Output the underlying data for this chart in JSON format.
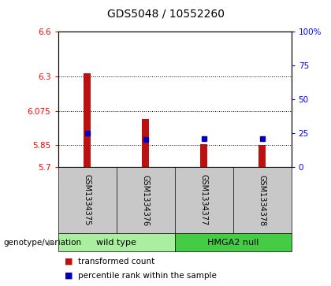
{
  "title": "GDS5048 / 10552260",
  "samples": [
    "GSM1334375",
    "GSM1334376",
    "GSM1334377",
    "GSM1334378"
  ],
  "bar_values": [
    6.325,
    6.02,
    5.855,
    5.848
  ],
  "bar_base": 5.7,
  "percentile_values": [
    5.928,
    5.882,
    5.888,
    5.888
  ],
  "ylim": [
    5.7,
    6.6
  ],
  "yticks_left": [
    5.7,
    5.85,
    6.075,
    6.3,
    6.6
  ],
  "ytick_labels_left": [
    "5.7",
    "5.85",
    "6.075",
    "6.3",
    "6.6"
  ],
  "right_yticks": [
    0,
    25,
    50,
    75,
    100
  ],
  "right_ytick_labels": [
    "0",
    "25",
    "50",
    "75",
    "100%"
  ],
  "bar_color": "#bb1111",
  "marker_color": "#0000bb",
  "group1_label": "wild type",
  "group2_label": "HMGA2 null",
  "group1_color": "#aaeea0",
  "group2_color": "#44cc44",
  "genotype_label": "genotype/variation",
  "legend_red": "transformed count",
  "legend_blue": "percentile rank within the sample",
  "grid_yticks": [
    5.85,
    6.075,
    6.3
  ],
  "bar_width": 0.12
}
